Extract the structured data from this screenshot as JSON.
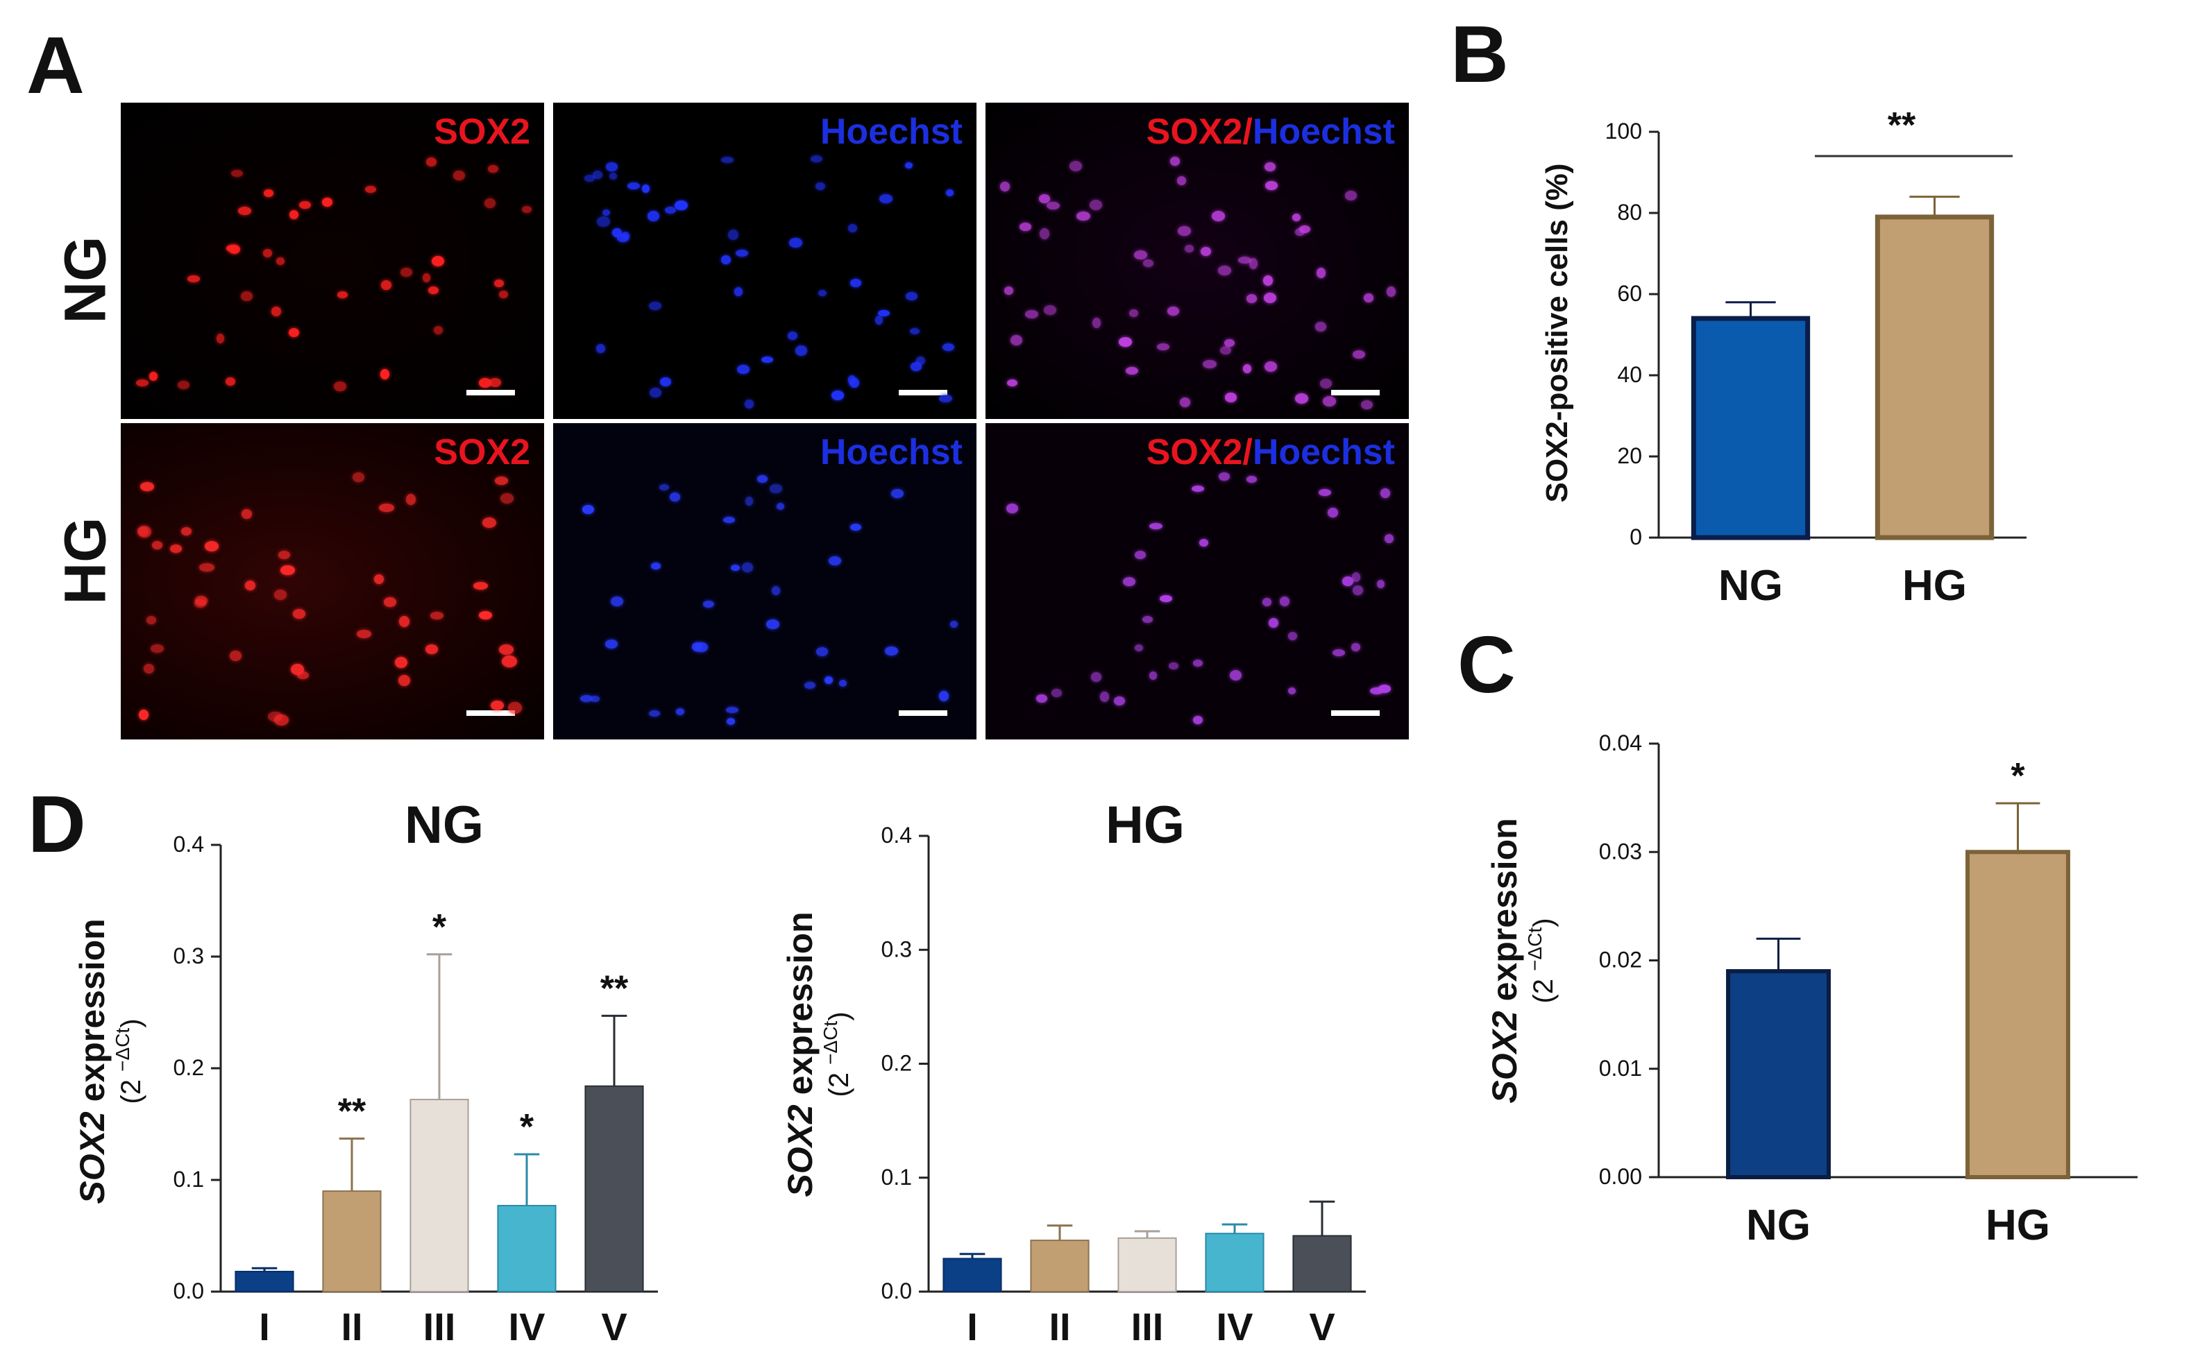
{
  "panels": {
    "a": "A",
    "b": "B",
    "c": "C",
    "d": "D"
  },
  "microscopy": {
    "rows": [
      "NG",
      "HG"
    ],
    "channels": [
      {
        "parts": [
          {
            "text": "SOX2",
            "color": "#e8141e"
          }
        ]
      },
      {
        "parts": [
          {
            "text": "Hoechst",
            "color": "#1c2fe0"
          }
        ]
      },
      {
        "parts": [
          {
            "text": "SOX2",
            "color": "#e8141e"
          },
          {
            "text": "/",
            "color": "#e8141e"
          },
          {
            "text": "Hoechst",
            "color": "#1c2fe0"
          }
        ]
      }
    ]
  },
  "colors": {
    "I": "#0b3f86",
    "II": "#c29f72",
    "III": "#e7e0d8",
    "IV": "#48b5cf",
    "V": "#4b5058",
    "NG_B": "#0a5aad",
    "HG": "#c29f72",
    "NG_C": "#0d3f85"
  },
  "chart_data": [
    {
      "id": "B",
      "type": "bar",
      "categories": [
        "NG",
        "HG"
      ],
      "values": [
        54,
        79
      ],
      "errors": [
        4,
        5
      ],
      "ylim": [
        0,
        100
      ],
      "yticks": [
        "0",
        "20",
        "40",
        "60",
        "80",
        "100"
      ],
      "ylabel": "SOX2-positive cells (%)",
      "significance": "**"
    },
    {
      "id": "C",
      "type": "bar",
      "categories": [
        "NG",
        "HG"
      ],
      "values": [
        0.019,
        0.03
      ],
      "errors": [
        0.003,
        0.0045
      ],
      "ylim": [
        0,
        0.04
      ],
      "yticks": [
        "0.00",
        "0.01",
        "0.02",
        "0.03",
        "0.04"
      ],
      "ylabel": {
        "gene": "SOX2",
        "rest": " expression",
        "unit_prefix": "(2 ",
        "unit_sup": "−ΔCt",
        "unit_suffix": ")"
      },
      "significance": [
        "",
        "*"
      ]
    },
    {
      "id": "D-NG",
      "type": "bar",
      "title": "NG",
      "categories": [
        "I",
        "II",
        "III",
        "IV",
        "V"
      ],
      "values": [
        0.018,
        0.09,
        0.172,
        0.077,
        0.184
      ],
      "errors": [
        0.003,
        0.047,
        0.13,
        0.046,
        0.063
      ],
      "ylim": [
        0,
        0.4
      ],
      "yticks": [
        "0.0",
        "0.1",
        "0.2",
        "0.3",
        "0.4"
      ],
      "ylabel": {
        "gene": "SOX2",
        "rest": " expression",
        "unit_prefix": "(2 ",
        "unit_sup": "−ΔCt",
        "unit_suffix": ")"
      },
      "significance": [
        "",
        "**",
        "*",
        "*",
        "**"
      ]
    },
    {
      "id": "D-HG",
      "type": "bar",
      "title": "HG",
      "categories": [
        "I",
        "II",
        "III",
        "IV",
        "V"
      ],
      "values": [
        0.029,
        0.045,
        0.047,
        0.051,
        0.049
      ],
      "errors": [
        0.004,
        0.013,
        0.006,
        0.008,
        0.03
      ],
      "ylim": [
        0,
        0.4
      ],
      "yticks": [
        "0.0",
        "0.1",
        "0.2",
        "0.3",
        "0.4"
      ],
      "ylabel": {
        "gene": "SOX2",
        "rest": " expression",
        "unit_prefix": "(2 ",
        "unit_sup": "−ΔCt",
        "unit_suffix": ")"
      },
      "significance": [
        "",
        "",
        "",
        "",
        ""
      ]
    }
  ]
}
